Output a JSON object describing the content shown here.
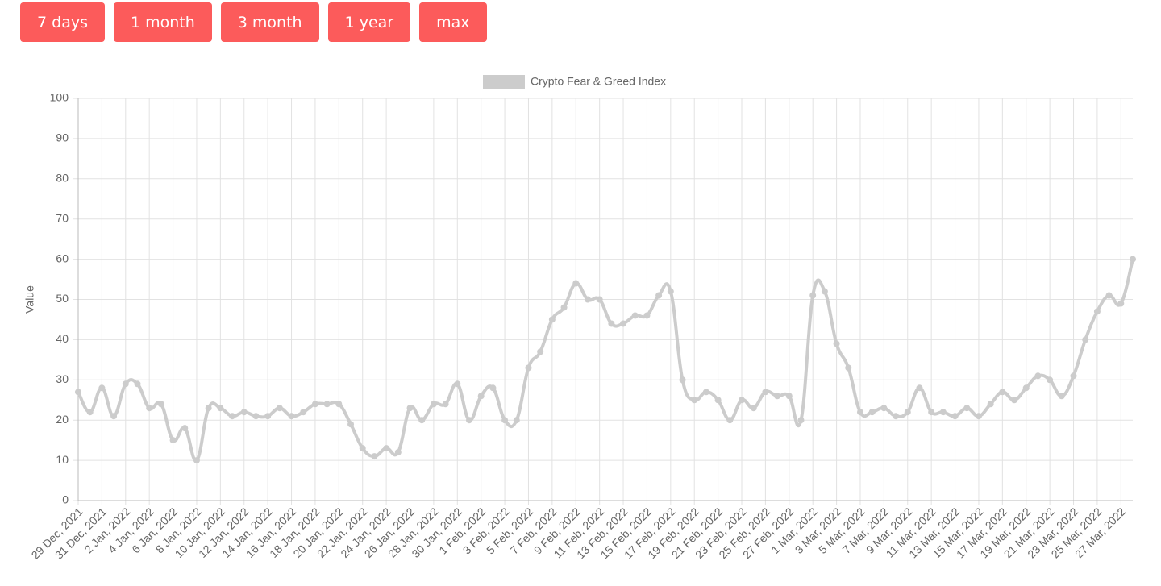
{
  "buttons": [
    "7 days",
    "1 month",
    "3 month",
    "1 year",
    "max"
  ],
  "chart_data": {
    "type": "line",
    "categories": [
      "29 Dec, 2021",
      null,
      "31 Dec, 2021",
      null,
      "2 Jan, 2022",
      null,
      "4 Jan, 2022",
      null,
      "6 Jan, 2022",
      null,
      "8 Jan, 2022",
      null,
      "10 Jan, 2022",
      null,
      "12 Jan, 2022",
      null,
      "14 Jan, 2022",
      null,
      "16 Jan, 2022",
      null,
      "18 Jan, 2022",
      null,
      "20 Jan, 2022",
      null,
      "22 Jan, 2022",
      null,
      "24 Jan, 2022",
      null,
      "26 Jan, 2022",
      null,
      "28 Jan, 2022",
      null,
      "30 Jan, 2022",
      null,
      "1 Feb, 2022",
      null,
      "3 Feb, 2022",
      null,
      "5 Feb, 2022",
      null,
      "7 Feb, 2022",
      null,
      "9 Feb, 2022",
      null,
      "11 Feb, 2022",
      null,
      "13 Feb, 2022",
      null,
      "15 Feb, 2022",
      null,
      "17 Feb, 2022",
      null,
      "19 Feb, 2022",
      null,
      "21 Feb, 2022",
      null,
      "23 Feb, 2022",
      null,
      "25 Feb, 2022",
      null,
      "27 Feb, 2022",
      null,
      "1 Mar, 2022",
      null,
      "3 Mar, 2022",
      null,
      "5 Mar, 2022",
      null,
      "7 Mar, 2022",
      null,
      "9 Mar, 2022",
      null,
      "11 Mar, 2022",
      null,
      "13 Mar, 2022",
      null,
      "15 Mar, 2022",
      null,
      "17 Mar, 2022",
      null,
      "19 Mar, 2022",
      null,
      "21 Mar, 2022",
      null,
      "23 Mar, 2022",
      null,
      "25 Mar, 2022",
      null,
      "27 Mar, 2022",
      null
    ],
    "series": [
      {
        "name": "Crypto Fear & Greed Index",
        "color": "#cccccc",
        "values": [
          27,
          22,
          28,
          21,
          29,
          29,
          23,
          24,
          15,
          18,
          10,
          23,
          23,
          21,
          22,
          21,
          21,
          23,
          21,
          22,
          24,
          24,
          24,
          19,
          13,
          11,
          13,
          12,
          23,
          20,
          24,
          24,
          29,
          20,
          26,
          28,
          20,
          20,
          33,
          37,
          45,
          48,
          54,
          50,
          50,
          44,
          44,
          46,
          46,
          51,
          52,
          30,
          25,
          27,
          25,
          20,
          25,
          23,
          27,
          26,
          26,
          20,
          51,
          52,
          39,
          33,
          22,
          22,
          23,
          21,
          22,
          28,
          22,
          22,
          21,
          23,
          21,
          24,
          27,
          25,
          28,
          31,
          30,
          26,
          31,
          40,
          47,
          51,
          49,
          60
        ]
      }
    ],
    "ylabel": "Value",
    "ylim": [
      0,
      100
    ],
    "yticks": [
      0,
      10,
      20,
      30,
      40,
      50,
      60,
      70,
      80,
      90,
      100
    ],
    "grid": true,
    "legend": "top"
  }
}
